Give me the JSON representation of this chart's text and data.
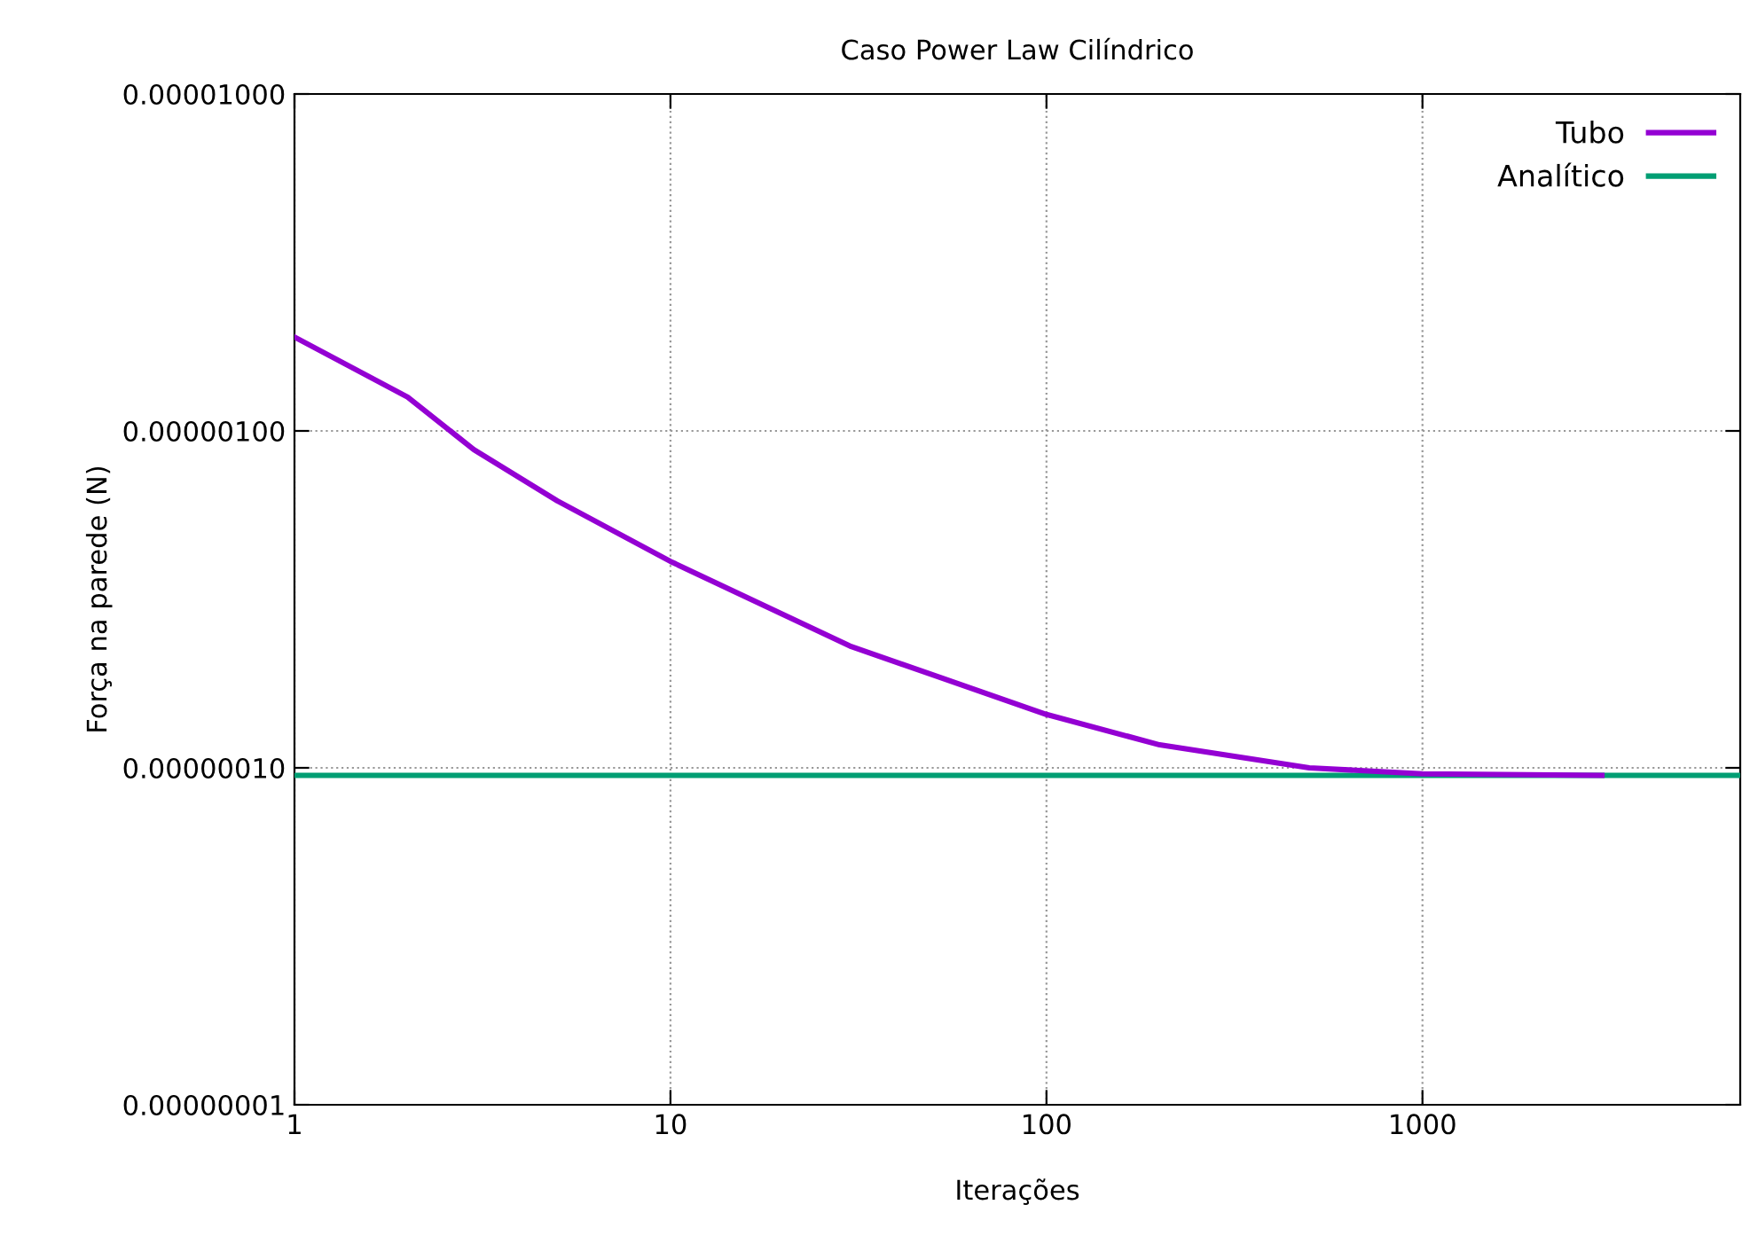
{
  "chart_data": {
    "type": "line",
    "title": "Caso Power Law Cilíndrico",
    "xlabel": "Iterações",
    "ylabel": "Força na parede (N)",
    "log": "xy",
    "grid": true,
    "legend": "top right",
    "marker": "none",
    "line_style": "solid",
    "xlim": [
      1,
      7000
    ],
    "ylim": [
      1e-08,
      1e-05
    ],
    "xticks": [
      1,
      10,
      100,
      1000
    ],
    "yticks": [
      {
        "value": 1e-08,
        "label": "0.00000001"
      },
      {
        "value": 1e-07,
        "label": "0.00000010"
      },
      {
        "value": 1e-06,
        "label": "0.00000100"
      },
      {
        "value": 1e-05,
        "label": "0.00001000"
      }
    ],
    "series": [
      {
        "name": "Tubo",
        "color": "#9400d3",
        "x": [
          1,
          2,
          3,
          5,
          10,
          30,
          100,
          200,
          500,
          1000,
          3000
        ],
        "values": [
          1.9e-06,
          1.26e-06,
          8.8e-07,
          6.2e-07,
          4.1e-07,
          2.3e-07,
          1.44e-07,
          1.17e-07,
          1e-07,
          9.6e-08,
          9.5e-08
        ]
      },
      {
        "name": "Analítico",
        "color": "#009e73",
        "x": [
          1,
          7000
        ],
        "values": [
          9.5e-08,
          9.5e-08
        ]
      }
    ]
  }
}
